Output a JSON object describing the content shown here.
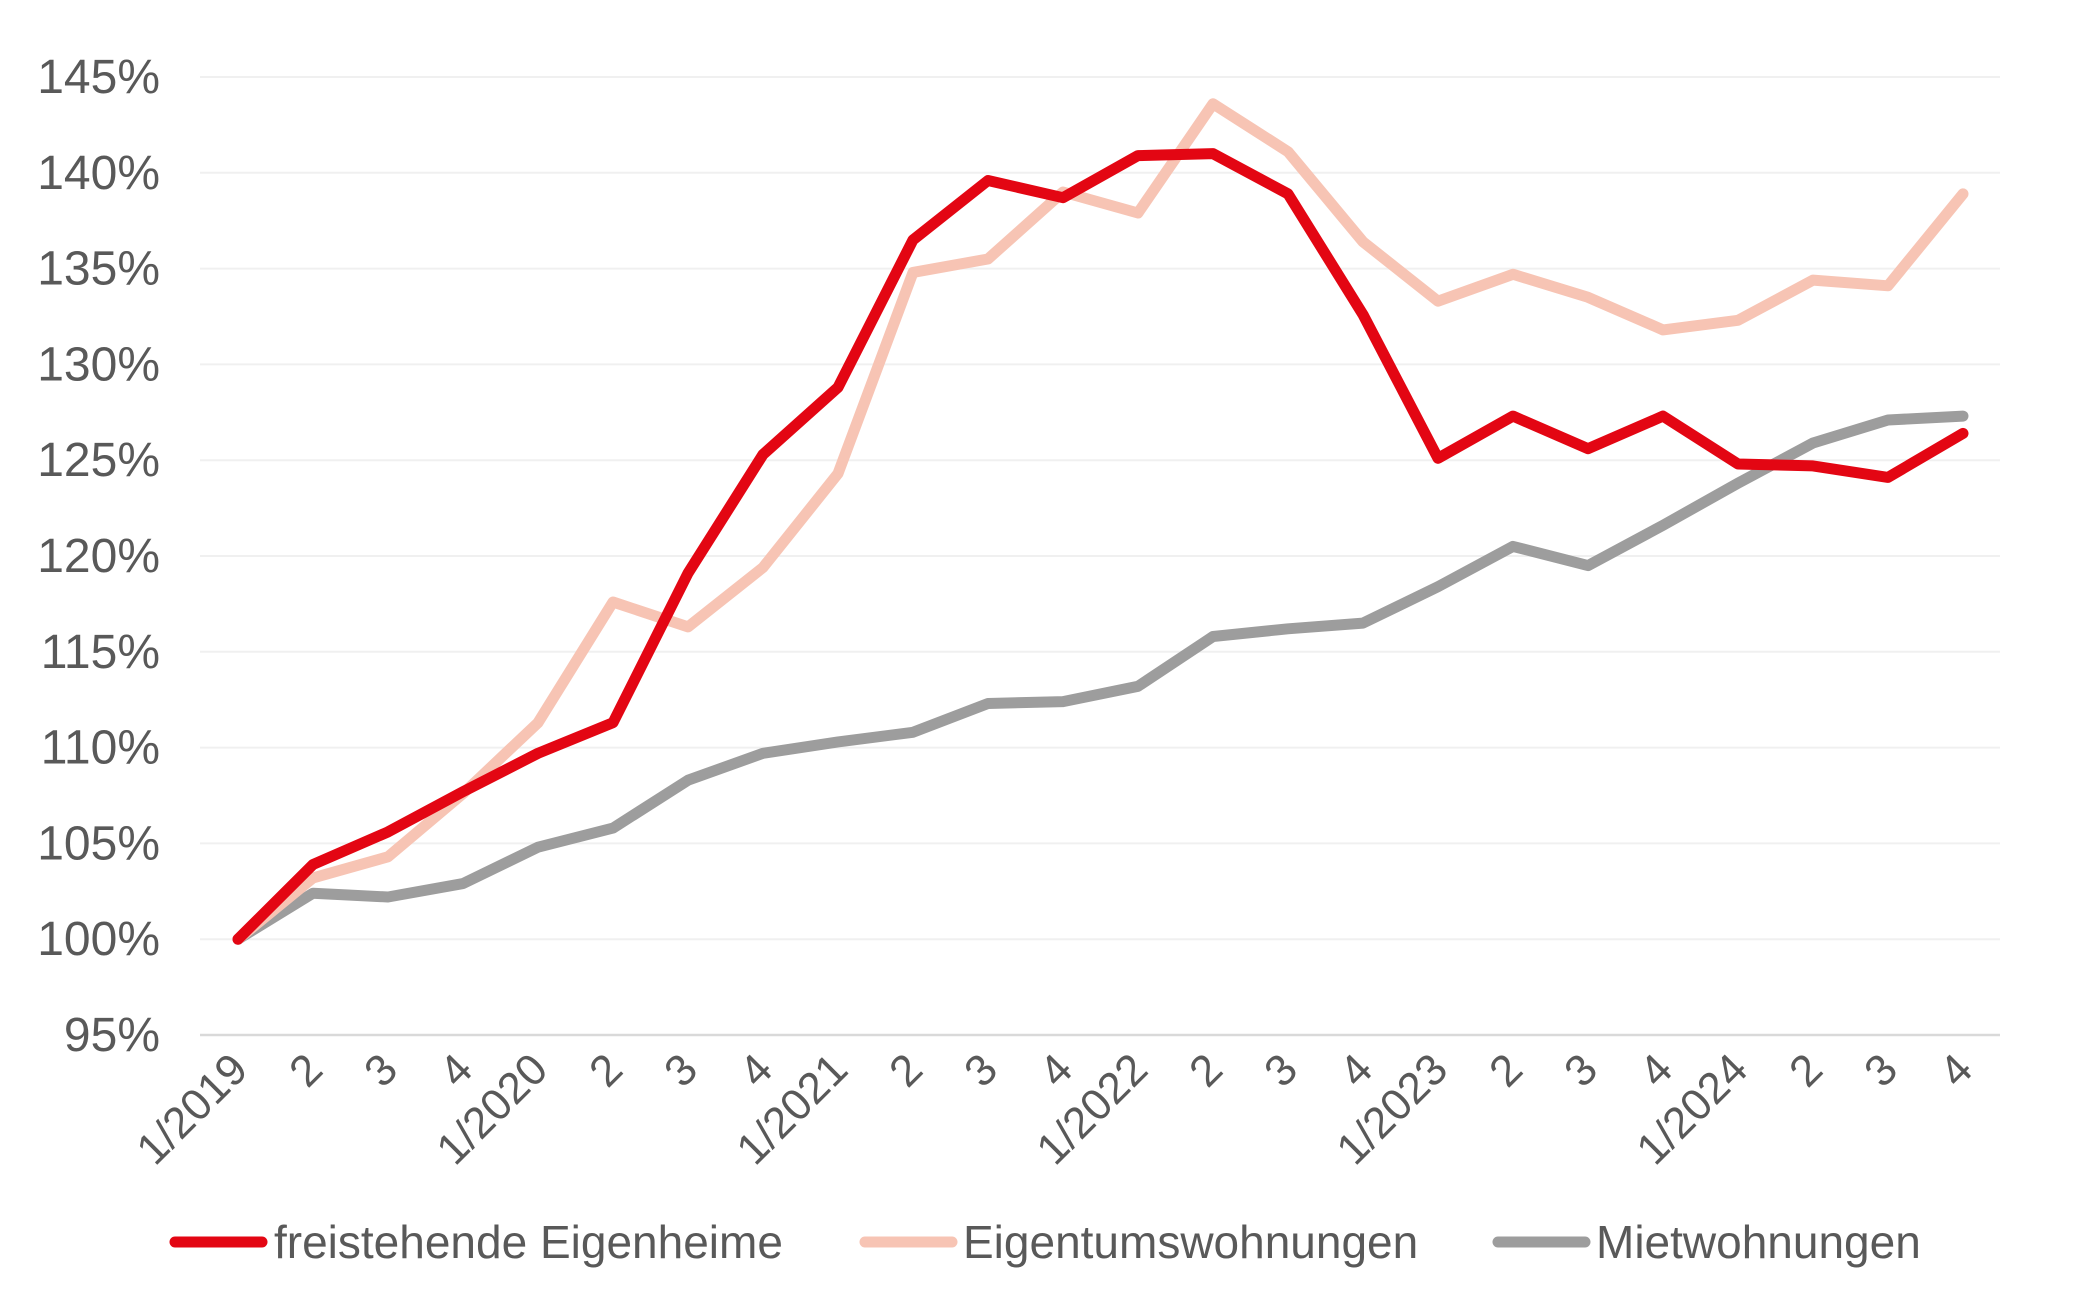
{
  "chart_data": {
    "type": "line",
    "title": "",
    "xlabel": "",
    "ylabel": "",
    "ylim": [
      95,
      145
    ],
    "yticks": [
      95,
      100,
      105,
      110,
      115,
      120,
      125,
      130,
      135,
      140,
      145
    ],
    "ytick_labels": [
      "95%",
      "100%",
      "105%",
      "110%",
      "115%",
      "120%",
      "125%",
      "130%",
      "135%",
      "140%",
      "145%"
    ],
    "categories": [
      "1/2019",
      "2",
      "3",
      "4",
      "1/2020",
      "2",
      "3",
      "4",
      "1/2021",
      "2",
      "3",
      "4",
      "1/2022",
      "2",
      "3",
      "4",
      "1/2023",
      "2",
      "3",
      "4",
      "1/2024",
      "2",
      "3",
      "4"
    ],
    "grid": true,
    "legend_position": "bottom",
    "series": [
      {
        "name": "freistehende Eigenheime",
        "color": "#e30613",
        "values": [
          100.0,
          103.9,
          105.6,
          107.7,
          109.7,
          111.3,
          119.1,
          125.3,
          128.8,
          136.5,
          139.6,
          138.7,
          140.9,
          141.0,
          138.9,
          132.6,
          125.1,
          127.3,
          125.6,
          127.3,
          124.8,
          124.7,
          124.1,
          126.4
        ]
      },
      {
        "name": "Eigentumswohnungen",
        "color": "#f7c4b4",
        "values": [
          100.0,
          103.2,
          104.3,
          107.6,
          111.3,
          117.6,
          116.3,
          119.4,
          124.3,
          134.8,
          135.5,
          139.0,
          137.9,
          143.6,
          141.1,
          136.4,
          133.3,
          134.7,
          133.5,
          131.8,
          132.3,
          134.4,
          134.1,
          138.9
        ]
      },
      {
        "name": "Mietwohnungen",
        "color": "#9d9d9d",
        "values": [
          100.0,
          102.4,
          102.2,
          102.9,
          104.8,
          105.8,
          108.3,
          109.7,
          110.3,
          110.8,
          112.3,
          112.4,
          113.2,
          115.8,
          116.2,
          116.5,
          118.4,
          120.5,
          119.5,
          121.6,
          123.8,
          125.9,
          127.1,
          127.3
        ]
      }
    ]
  }
}
